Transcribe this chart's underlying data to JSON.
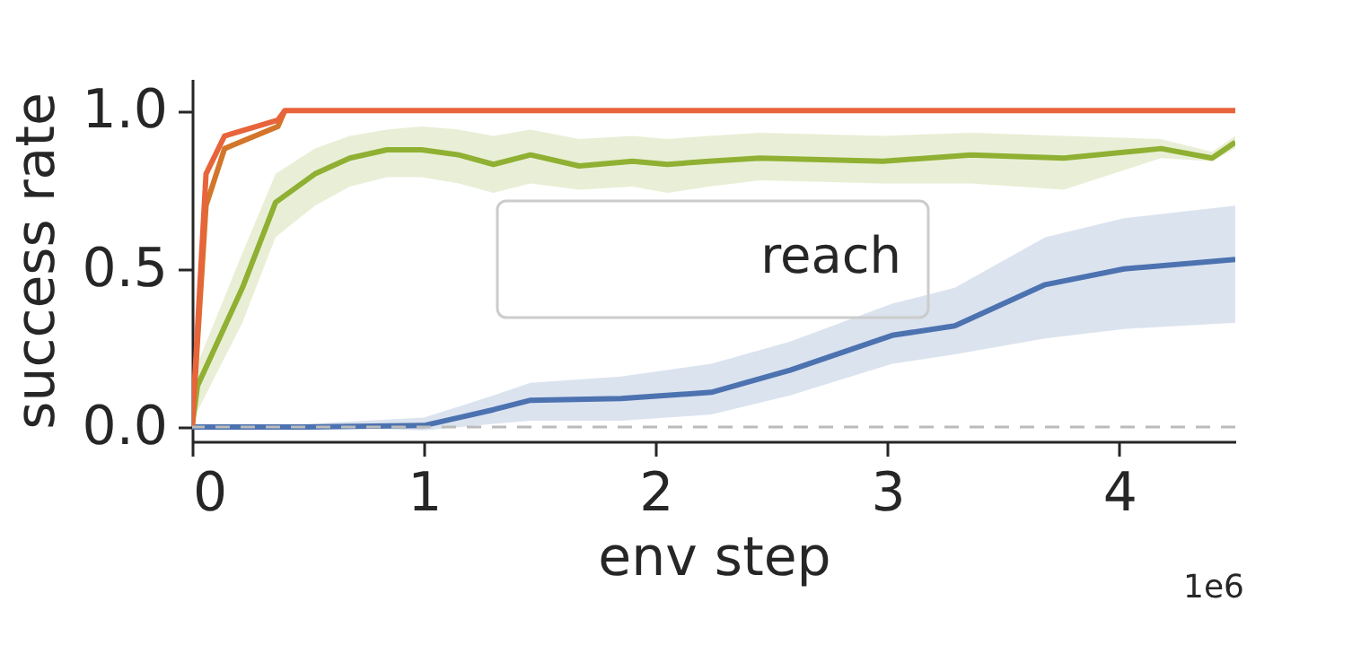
{
  "chart_data": {
    "type": "line",
    "xlabel": "env step",
    "ylabel": "success rate",
    "xlim": [
      0,
      4.5
    ],
    "xticks": [
      0,
      1,
      2,
      3,
      4
    ],
    "ylim": [
      -0.045,
      1.1
    ],
    "yticks": [
      {
        "value": 0,
        "label": "0.0"
      },
      {
        "value": 0.5,
        "label": "0.5"
      },
      {
        "value": 1,
        "label": "1.0"
      }
    ],
    "grid": false,
    "line_style": "solid",
    "marker": "none",
    "ref_lines": [
      {
        "axis": "y",
        "value": 0,
        "color": "#bbbbbb",
        "line_style": "dashed"
      }
    ],
    "annotations": [
      "reach",
      "1e6"
    ],
    "series": [
      {
        "color": "#4c72b0",
        "x": [
          0,
          0.5,
          1.0,
          1.3,
          1.46,
          1.85,
          2.24,
          2.58,
          3.02,
          3.29,
          3.68,
          4.02,
          4.5
        ],
        "values": [
          0,
          0,
          0.005,
          0.055,
          0.085,
          0.09,
          0.11,
          0.18,
          0.29,
          0.32,
          0.45,
          0.5,
          0.53
        ],
        "lower": [
          0,
          0,
          -0.01,
          0.01,
          0.02,
          0.02,
          0.04,
          0.1,
          0.2,
          0.23,
          0.28,
          0.31,
          0.33
        ],
        "upper": [
          0,
          0.01,
          0.03,
          0.1,
          0.14,
          0.16,
          0.2,
          0.27,
          0.39,
          0.44,
          0.6,
          0.66,
          0.7
        ]
      },
      {
        "color": "#8fb032",
        "x": [
          0,
          0.023,
          0.217,
          0.36,
          0.53,
          0.68,
          0.84,
          0.99,
          1.15,
          1.3,
          1.46,
          1.67,
          1.9,
          2.05,
          2.23,
          2.45,
          2.98,
          3.36,
          3.76,
          4.18,
          4.4,
          4.5
        ],
        "values": [
          0,
          0.13,
          0.44,
          0.71,
          0.8,
          0.85,
          0.876,
          0.876,
          0.86,
          0.83,
          0.86,
          0.825,
          0.84,
          0.83,
          0.84,
          0.85,
          0.84,
          0.86,
          0.85,
          0.88,
          0.85,
          0.9
        ],
        "lower": [
          0,
          0.05,
          0.33,
          0.6,
          0.7,
          0.76,
          0.79,
          0.79,
          0.77,
          0.74,
          0.77,
          0.75,
          0.76,
          0.74,
          0.76,
          0.78,
          0.77,
          0.77,
          0.75,
          0.85,
          0.84,
          0.88
        ],
        "upper": [
          0,
          0.2,
          0.55,
          0.8,
          0.88,
          0.92,
          0.94,
          0.95,
          0.94,
          0.92,
          0.94,
          0.91,
          0.92,
          0.91,
          0.92,
          0.93,
          0.92,
          0.93,
          0.92,
          0.91,
          0.87,
          0.92
        ]
      },
      {
        "color": "#d3752a",
        "x": [
          0,
          0.06,
          0.14,
          0.37,
          0.4
        ],
        "values": [
          0,
          0.7,
          0.88,
          0.95,
          1
        ]
      },
      {
        "color": "#e8643a",
        "x": [
          0,
          0.06,
          0.14,
          0.37,
          0.4,
          4.5
        ],
        "values": [
          0,
          0.8,
          0.92,
          0.97,
          1,
          1
        ]
      }
    ]
  }
}
